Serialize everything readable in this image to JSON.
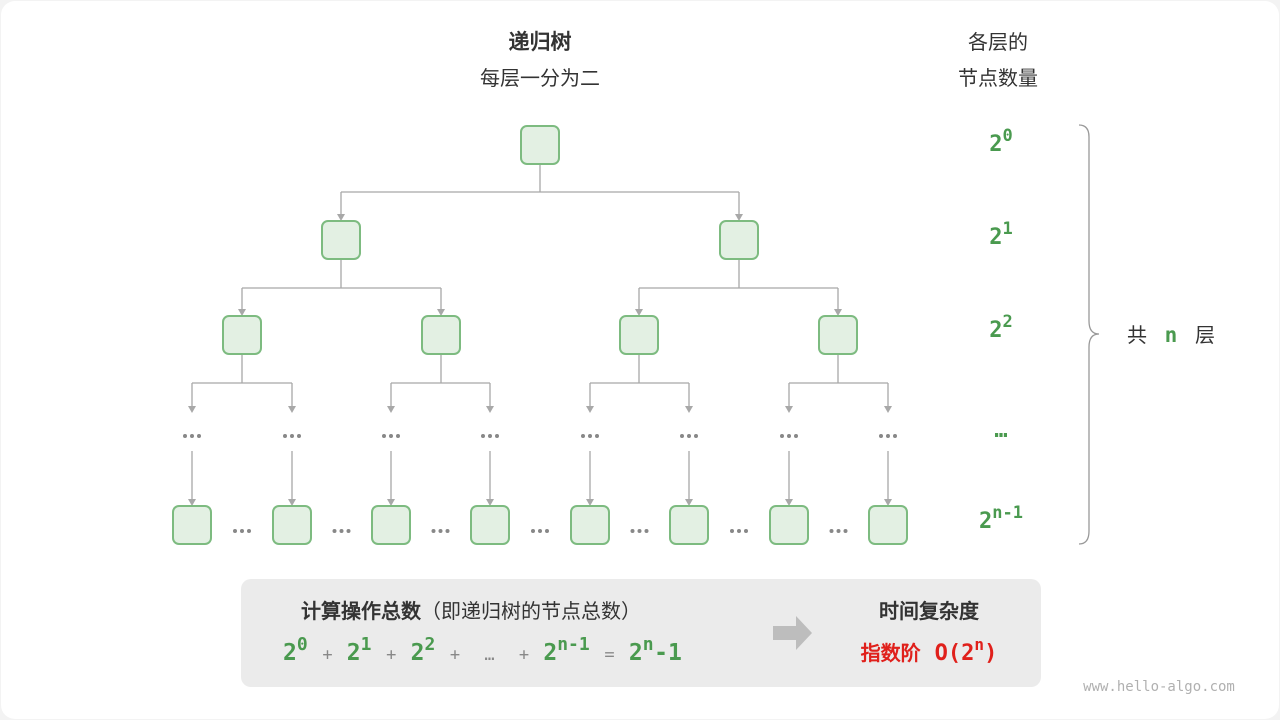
{
  "header": {
    "title": "递归树",
    "subtitle": "每层一分为二"
  },
  "right_header": {
    "line1": "各层的",
    "line2": "节点数量"
  },
  "levels": [
    {
      "base": "2",
      "exp": "0"
    },
    {
      "base": "2",
      "exp": "1"
    },
    {
      "base": "2",
      "exp": "2"
    },
    {
      "base": "…",
      "exp": ""
    },
    {
      "base": "2",
      "exp": "n-1"
    }
  ],
  "brace_label": {
    "pre": "共",
    "n": "n",
    "post": "层"
  },
  "ellipsis": "•••",
  "summary": {
    "title": "计算操作总数",
    "title_note": "（即递归树的节点总数）",
    "terms": [
      {
        "base": "2",
        "exp": "0"
      },
      {
        "op": "+"
      },
      {
        "base": "2",
        "exp": "1"
      },
      {
        "op": "+"
      },
      {
        "base": "2",
        "exp": "2"
      },
      {
        "op": "+"
      },
      {
        "op": "…"
      },
      {
        "op": "+"
      },
      {
        "base": "2",
        "exp": "n-1"
      },
      {
        "op": "="
      },
      {
        "base": "2",
        "exp": "n"
      },
      {
        "text": "-1"
      }
    ],
    "complexity_title": "时间复杂度",
    "complexity_name": "指数阶",
    "complexity_expr": {
      "pre": "O(2",
      "exp": "n",
      "post": ")"
    }
  },
  "colors": {
    "node_fill": "#e3f0e3",
    "node_stroke": "#7dbb80",
    "green": "#4a9a4f",
    "red": "#e0201b",
    "line": "#a8a8a8",
    "box": "#ebebeb"
  },
  "watermark": "www.hello-algo.com"
}
